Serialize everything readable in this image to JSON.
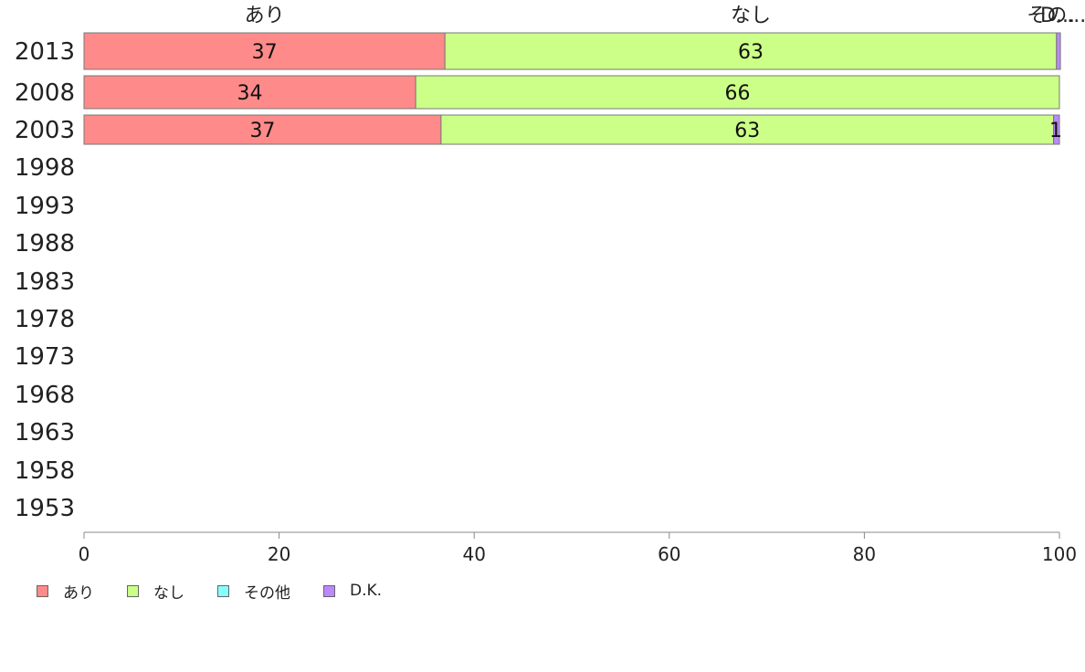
{
  "chart_data": {
    "type": "bar",
    "orientation": "horizontal",
    "stacked": true,
    "categories": [
      "2013",
      "2008",
      "2003",
      "1998",
      "1993",
      "1988",
      "1983",
      "1978",
      "1973",
      "1968",
      "1963",
      "1958",
      "1953"
    ],
    "series": [
      {
        "name": "あり",
        "color": "#ff8a8a",
        "values": [
          37,
          34,
          36.6,
          null,
          null,
          null,
          null,
          null,
          null,
          null,
          null,
          null,
          null
        ],
        "labels": [
          "37",
          "34",
          "37",
          "",
          "",
          "",
          "",
          "",
          "",
          "",
          "",
          "",
          ""
        ]
      },
      {
        "name": "なし",
        "color": "#ccff88",
        "values": [
          62.7,
          66,
          62.8,
          null,
          null,
          null,
          null,
          null,
          null,
          null,
          null,
          null,
          null
        ],
        "labels": [
          "63",
          "66",
          "63",
          "",
          "",
          "",
          "",
          "",
          "",
          "",
          "",
          "",
          ""
        ]
      },
      {
        "name": "その他",
        "color": "#88ffff",
        "values": [
          0,
          0,
          0,
          null,
          null,
          null,
          null,
          null,
          null,
          null,
          null,
          null,
          null
        ],
        "labels": [
          "",
          "",
          "",
          "",
          "",
          "",
          "",
          "",
          "",
          "",
          "",
          "",
          ""
        ]
      },
      {
        "name": "D.K.",
        "color": "#bb88ff",
        "values": [
          0.4,
          0,
          0.6,
          null,
          null,
          null,
          null,
          null,
          null,
          null,
          null,
          null,
          null
        ],
        "labels": [
          "",
          "",
          "1",
          "",
          "",
          "",
          "",
          "",
          "",
          "",
          "",
          "",
          ""
        ]
      }
    ],
    "top_labels": [
      {
        "text": "あり",
        "series": 0
      },
      {
        "text": "なし",
        "series": 1
      },
      {
        "text": "その...",
        "series": 2
      },
      {
        "text": "D...",
        "series": 3
      }
    ],
    "xlim": [
      0,
      100
    ],
    "xticks": [
      0,
      20,
      40,
      60,
      80,
      100
    ],
    "grid": false,
    "legend_position": "bottom-left"
  }
}
